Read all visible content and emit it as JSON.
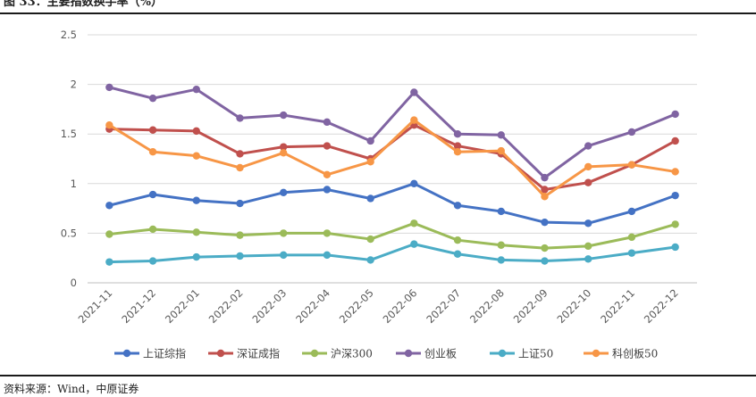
{
  "figure": {
    "title": "图 33：主要指数换手率（%）",
    "source": "资料来源：Wind，中原证券"
  },
  "chart_data": {
    "type": "line",
    "title": "",
    "xlabel": "",
    "ylabel": "",
    "ylim": [
      0,
      2.5
    ],
    "yticks": [
      "0",
      "0.5",
      "1",
      "1.5",
      "2",
      "2.5"
    ],
    "grid": "horizontal",
    "legend_position": "bottom",
    "categories": [
      "2021-11",
      "2021-12",
      "2022-01",
      "2022-02",
      "2022-03",
      "2022-04",
      "2022-05",
      "2022-06",
      "2022-07",
      "2022-08",
      "2022-09",
      "2022-10",
      "2022-11",
      "2022-12"
    ],
    "series": [
      {
        "name": "上证综指",
        "color": "#4472C4",
        "values": [
          0.78,
          0.89,
          0.83,
          0.8,
          0.91,
          0.94,
          0.85,
          1.0,
          0.78,
          0.72,
          0.61,
          0.6,
          0.72,
          0.88
        ]
      },
      {
        "name": "深证成指",
        "color": "#C0504D",
        "values": [
          1.55,
          1.54,
          1.53,
          1.3,
          1.37,
          1.38,
          1.25,
          1.59,
          1.38,
          1.3,
          0.94,
          1.01,
          1.19,
          1.43
        ]
      },
      {
        "name": "沪深300",
        "color": "#9BBB59",
        "values": [
          0.49,
          0.54,
          0.51,
          0.48,
          0.5,
          0.5,
          0.44,
          0.6,
          0.43,
          0.38,
          0.35,
          0.37,
          0.46,
          0.59
        ]
      },
      {
        "name": "创业板",
        "color": "#8064A2",
        "values": [
          1.97,
          1.86,
          1.95,
          1.66,
          1.69,
          1.62,
          1.43,
          1.92,
          1.5,
          1.49,
          1.06,
          1.38,
          1.52,
          1.7
        ]
      },
      {
        "name": "上证50",
        "color": "#4BACC6",
        "values": [
          0.21,
          0.22,
          0.26,
          0.27,
          0.28,
          0.28,
          0.23,
          0.39,
          0.29,
          0.23,
          0.22,
          0.24,
          0.3,
          0.36
        ]
      },
      {
        "name": "科创板50",
        "color": "#F79646",
        "values": [
          1.59,
          1.32,
          1.28,
          1.16,
          1.31,
          1.09,
          1.22,
          1.64,
          1.32,
          1.33,
          0.87,
          1.17,
          1.19,
          1.12
        ]
      }
    ]
  }
}
